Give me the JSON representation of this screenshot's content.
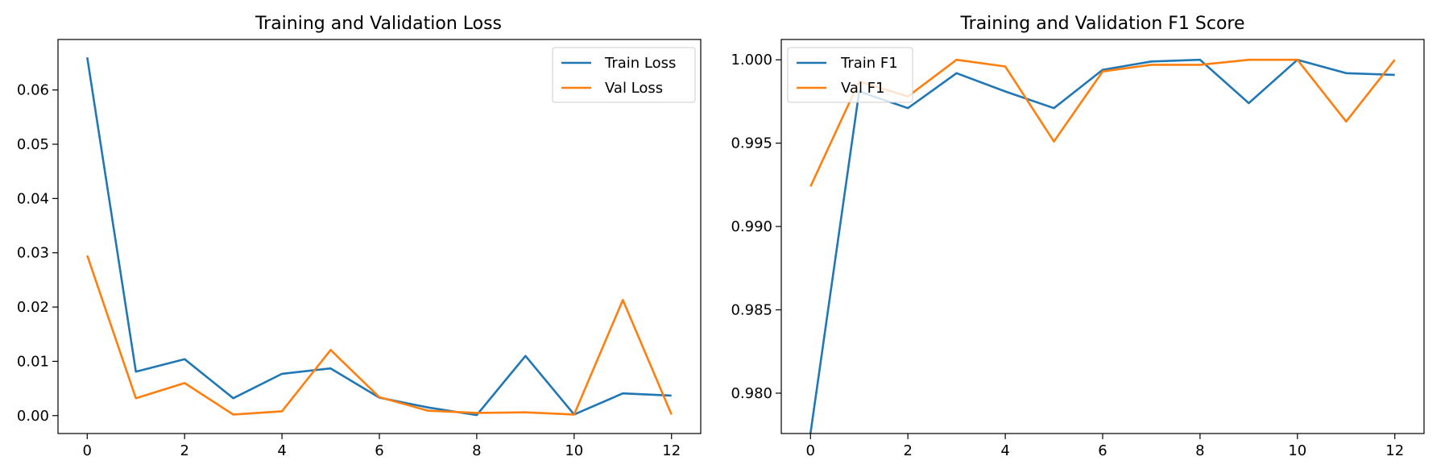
{
  "chart_data": [
    {
      "type": "line",
      "title": "Training and Validation Loss",
      "xlabel": "",
      "ylabel": "",
      "xlim": [
        -0.6,
        12.6
      ],
      "ylim": [
        -0.0033,
        0.0693
      ],
      "x_ticks": [
        0,
        2,
        4,
        6,
        8,
        10,
        12
      ],
      "x_tick_labels": [
        "0",
        "2",
        "4",
        "6",
        "8",
        "10",
        "12"
      ],
      "y_ticks": [
        0.0,
        0.01,
        0.02,
        0.03,
        0.04,
        0.05,
        0.06
      ],
      "y_tick_labels": [
        "0.00",
        "0.01",
        "0.02",
        "0.03",
        "0.04",
        "0.05",
        "0.06"
      ],
      "legend_position": "top-right",
      "grid": false,
      "x": [
        0,
        1,
        2,
        3,
        4,
        5,
        6,
        7,
        8,
        9,
        10,
        11,
        12
      ],
      "series": [
        {
          "name": "Train Loss",
          "color": "#1f77b4",
          "values": [
            0.066,
            0.0081,
            0.0104,
            0.0032,
            0.0077,
            0.0087,
            0.0033,
            0.0015,
            0.0001,
            0.011,
            0.0002,
            0.0041,
            0.0037
          ]
        },
        {
          "name": "Val Loss",
          "color": "#ff7f0e",
          "values": [
            0.0295,
            0.0032,
            0.006,
            0.0002,
            0.0008,
            0.0121,
            0.0034,
            0.0009,
            0.0005,
            0.0006,
            0.0002,
            0.0213,
            0.0002
          ]
        }
      ]
    },
    {
      "type": "line",
      "title": "Training and Validation F1 Score",
      "xlabel": "",
      "ylabel": "",
      "xlim": [
        -0.6,
        12.6
      ],
      "ylim": [
        0.97758,
        1.00122
      ],
      "x_ticks": [
        0,
        2,
        4,
        6,
        8,
        10,
        12
      ],
      "x_tick_labels": [
        "0",
        "2",
        "4",
        "6",
        "8",
        "10",
        "12"
      ],
      "y_ticks": [
        0.98,
        0.985,
        0.99,
        0.995,
        1.0
      ],
      "y_tick_labels": [
        "0.980",
        "0.985",
        "0.990",
        "0.995",
        "1.000"
      ],
      "legend_position": "top-left",
      "grid": false,
      "x": [
        0,
        1,
        2,
        3,
        4,
        5,
        6,
        7,
        8,
        9,
        10,
        11,
        12
      ],
      "series": [
        {
          "name": "Train F1",
          "color": "#1f77b4",
          "values": [
            0.9776,
            0.9981,
            0.9971,
            0.9992,
            0.9981,
            0.9971,
            0.9994,
            0.9999,
            1.0,
            0.9974,
            1.0,
            0.9992,
            0.9991
          ]
        },
        {
          "name": "Val F1",
          "color": "#ff7f0e",
          "values": [
            0.9924,
            0.9987,
            0.9978,
            1.0,
            0.9996,
            0.9951,
            0.9993,
            0.9997,
            0.9997,
            1.0,
            1.0,
            0.9963,
            1.0
          ]
        }
      ]
    }
  ]
}
